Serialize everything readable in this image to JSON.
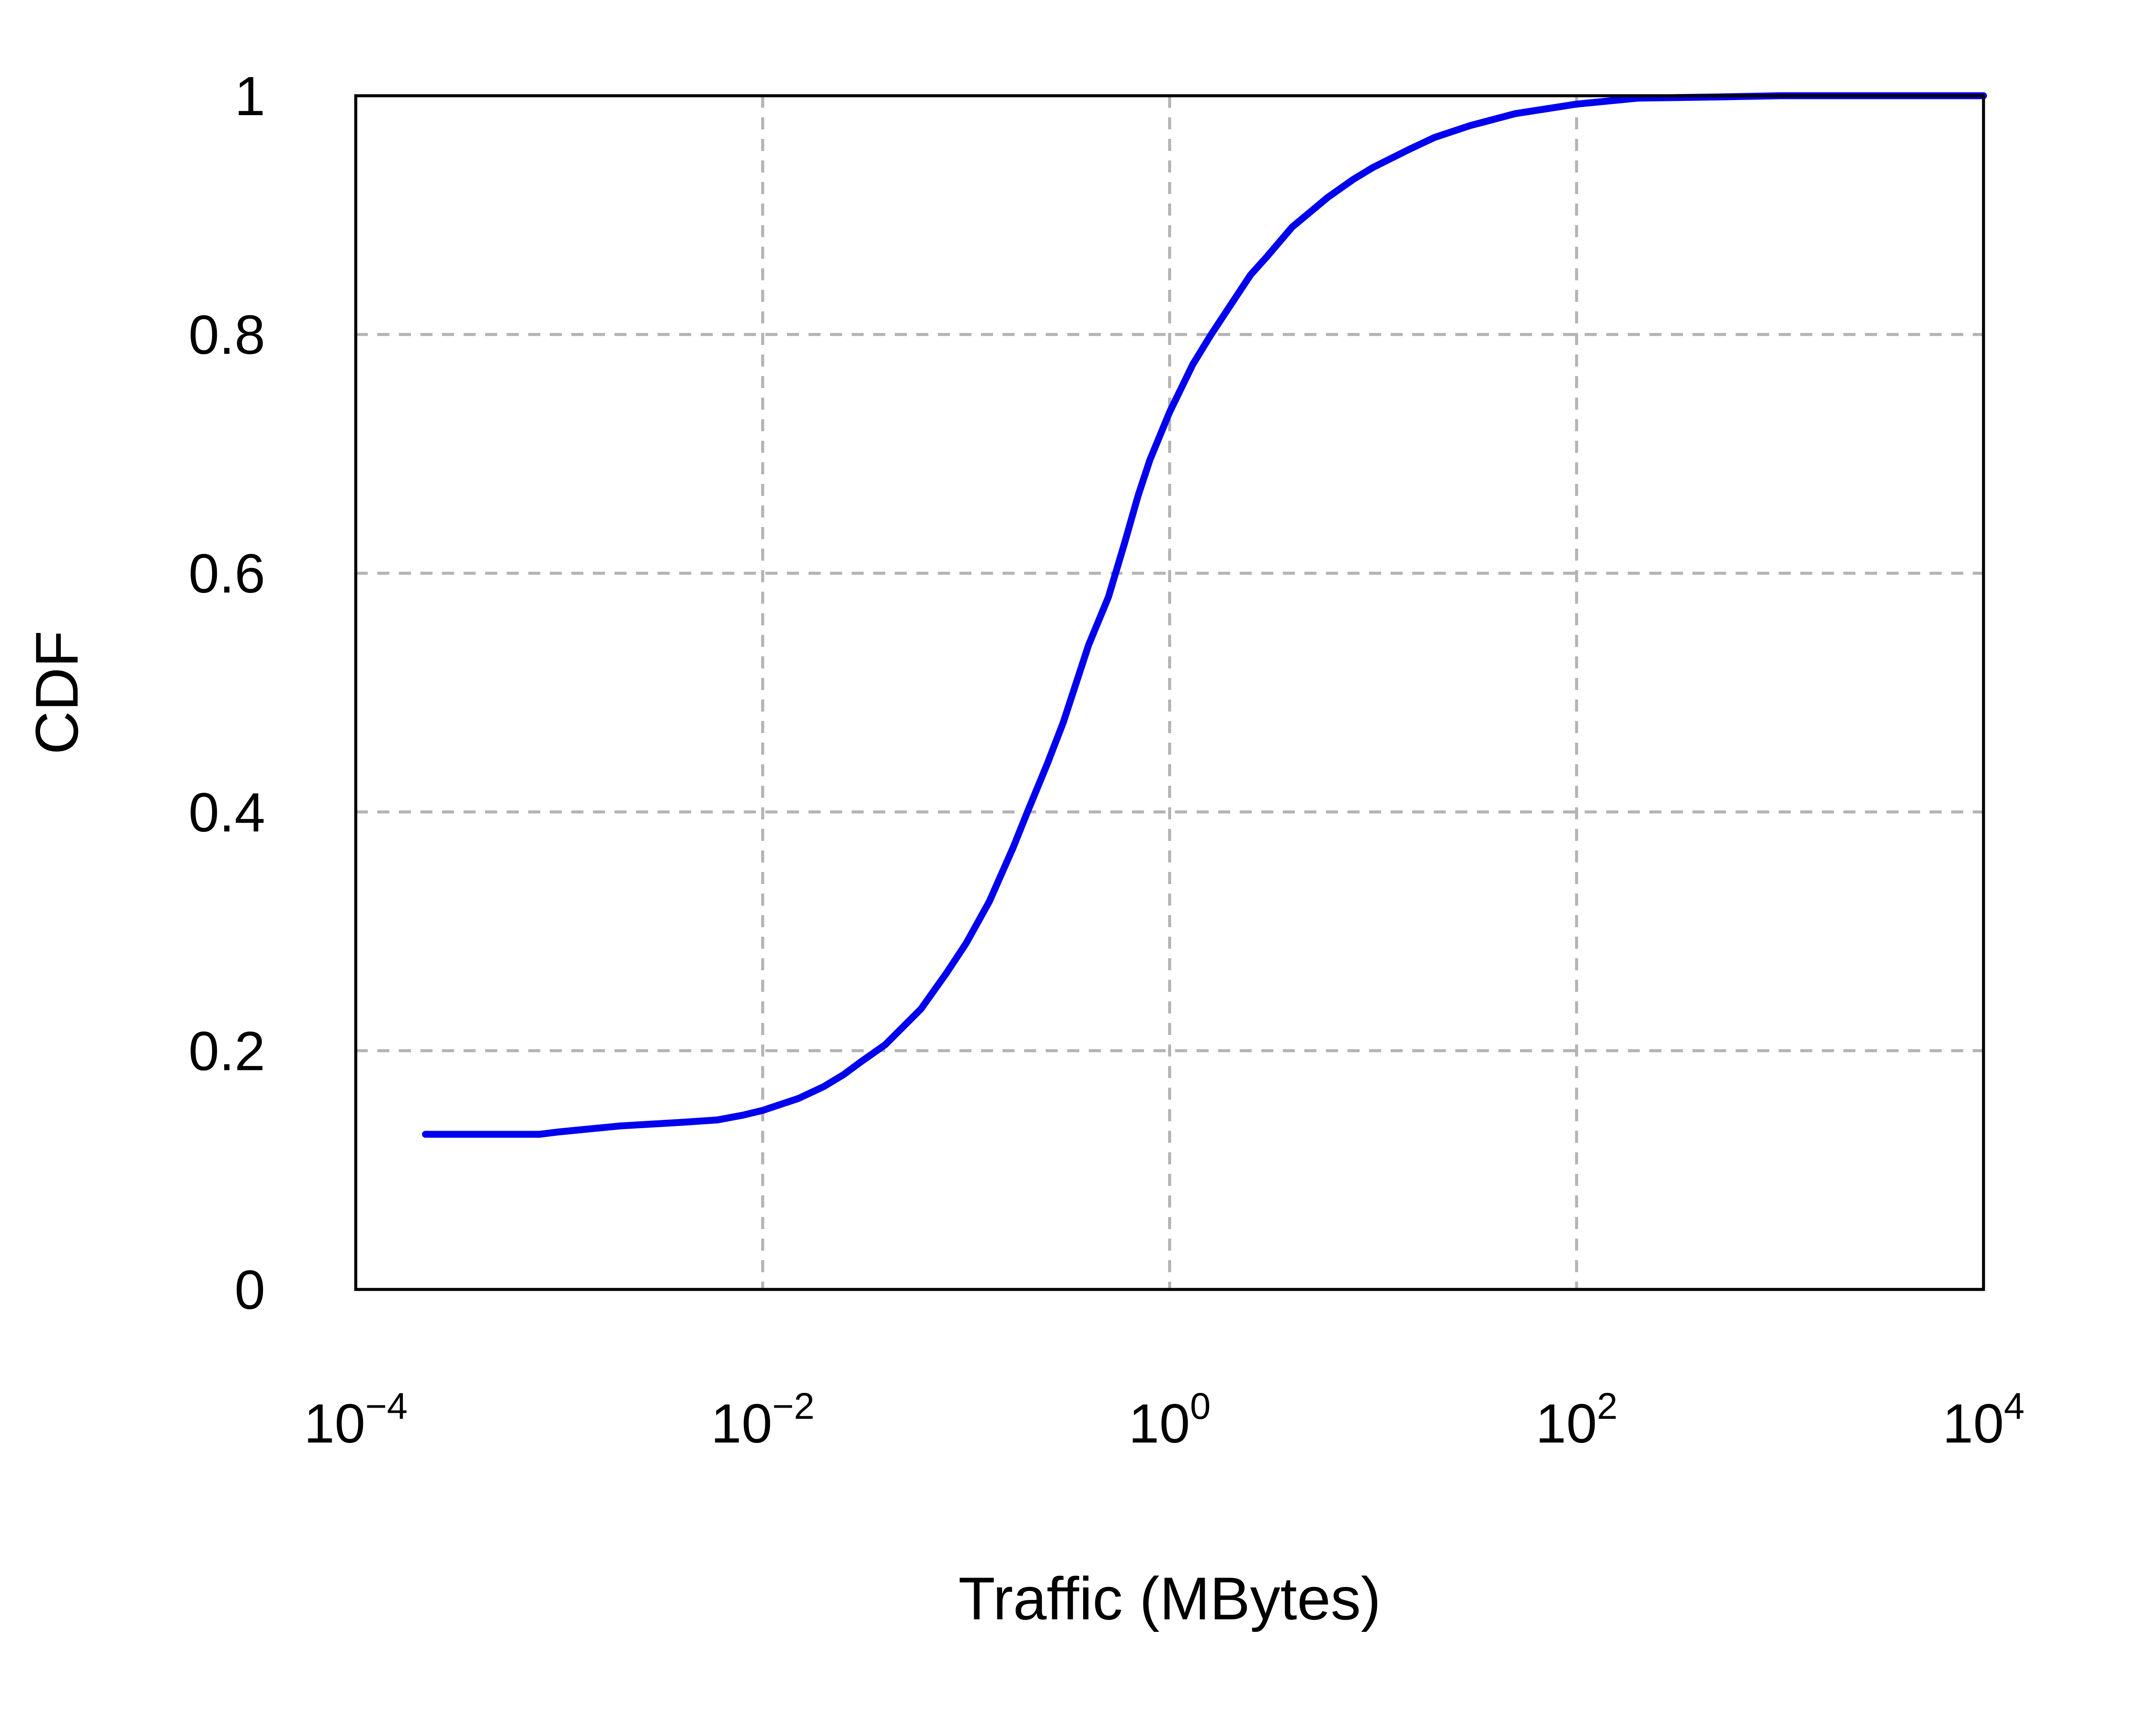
{
  "chart_data": {
    "type": "line",
    "xlabel": "Traffic (MBytes)",
    "ylabel": "CDF",
    "xscale": "log",
    "xlim": [
      0.0001,
      10000
    ],
    "ylim": [
      0,
      1
    ],
    "x_ticks": [
      {
        "base": "10",
        "exp": "−4",
        "value": 0.0001
      },
      {
        "base": "10",
        "exp": "−2",
        "value": 0.01
      },
      {
        "base": "10",
        "exp": "0",
        "value": 1
      },
      {
        "base": "10",
        "exp": "2",
        "value": 100
      },
      {
        "base": "10",
        "exp": "4",
        "value": 10000
      }
    ],
    "y_ticks": [
      {
        "label": "0",
        "value": 0
      },
      {
        "label": "0.2",
        "value": 0.2
      },
      {
        "label": "0.4",
        "value": 0.4
      },
      {
        "label": "0.6",
        "value": 0.6
      },
      {
        "label": "0.8",
        "value": 0.8
      },
      {
        "label": "1",
        "value": 1
      }
    ],
    "grid": true,
    "series": [
      {
        "color": "#0000ee",
        "x": [
          0.00022,
          0.0004,
          0.0008,
          0.001,
          0.002,
          0.004,
          0.006,
          0.008,
          0.01,
          0.015,
          0.02,
          0.025,
          0.03,
          0.04,
          0.06,
          0.08,
          0.1,
          0.13,
          0.17,
          0.2,
          0.25,
          0.3,
          0.4,
          0.5,
          0.6,
          0.7,
          0.8,
          1.0,
          1.3,
          1.6,
          2,
          2.5,
          3,
          4,
          6,
          8,
          10,
          15,
          20,
          30,
          50,
          100,
          200,
          500,
          1000,
          10000
        ],
        "y": [
          0.13,
          0.13,
          0.13,
          0.132,
          0.137,
          0.14,
          0.142,
          0.146,
          0.15,
          0.16,
          0.17,
          0.18,
          0.19,
          0.205,
          0.235,
          0.265,
          0.29,
          0.325,
          0.37,
          0.4,
          0.44,
          0.475,
          0.54,
          0.58,
          0.625,
          0.665,
          0.695,
          0.735,
          0.775,
          0.8,
          0.825,
          0.85,
          0.865,
          0.89,
          0.915,
          0.93,
          0.94,
          0.955,
          0.965,
          0.975,
          0.985,
          0.993,
          0.998,
          0.999,
          1.0,
          1.0
        ]
      }
    ]
  }
}
